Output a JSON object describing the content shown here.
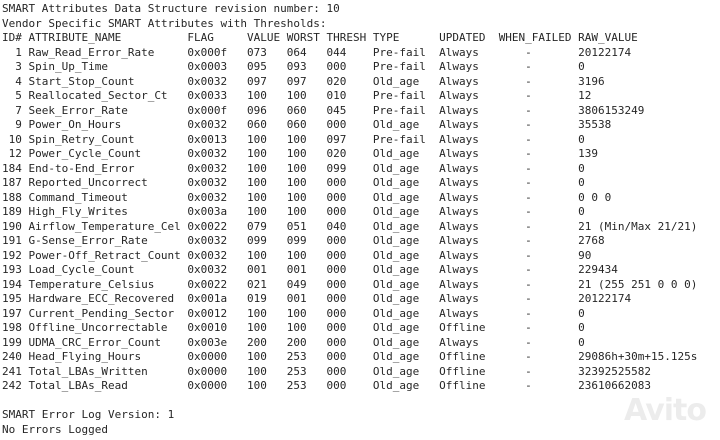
{
  "intro": [
    "SMART Attributes Data Structure revision number: 10",
    "Vendor Specific SMART Attributes with Thresholds:"
  ],
  "columns": {
    "id": "ID#",
    "name": "ATTRIBUTE_NAME",
    "flag": "FLAG",
    "value": "VALUE",
    "worst": "WORST",
    "thresh": "THRESH",
    "type": "TYPE",
    "updated": "UPDATED",
    "when_failed": "WHEN_FAILED",
    "raw": "RAW_VALUE"
  },
  "rows": [
    {
      "id": "1",
      "name": "Raw_Read_Error_Rate",
      "flag": "0x000f",
      "value": "073",
      "worst": "064",
      "thresh": "044",
      "type": "Pre-fail",
      "updated": "Always",
      "when_failed": "-",
      "raw": "20122174"
    },
    {
      "id": "3",
      "name": "Spin_Up_Time",
      "flag": "0x0003",
      "value": "095",
      "worst": "093",
      "thresh": "000",
      "type": "Pre-fail",
      "updated": "Always",
      "when_failed": "-",
      "raw": "0"
    },
    {
      "id": "4",
      "name": "Start_Stop_Count",
      "flag": "0x0032",
      "value": "097",
      "worst": "097",
      "thresh": "020",
      "type": "Old_age",
      "updated": "Always",
      "when_failed": "-",
      "raw": "3196"
    },
    {
      "id": "5",
      "name": "Reallocated_Sector_Ct",
      "flag": "0x0033",
      "value": "100",
      "worst": "100",
      "thresh": "010",
      "type": "Pre-fail",
      "updated": "Always",
      "when_failed": "-",
      "raw": "12"
    },
    {
      "id": "7",
      "name": "Seek_Error_Rate",
      "flag": "0x000f",
      "value": "096",
      "worst": "060",
      "thresh": "045",
      "type": "Pre-fail",
      "updated": "Always",
      "when_failed": "-",
      "raw": "3806153249"
    },
    {
      "id": "9",
      "name": "Power_On_Hours",
      "flag": "0x0032",
      "value": "060",
      "worst": "060",
      "thresh": "000",
      "type": "Old_age",
      "updated": "Always",
      "when_failed": "-",
      "raw": "35538"
    },
    {
      "id": "10",
      "name": "Spin_Retry_Count",
      "flag": "0x0013",
      "value": "100",
      "worst": "100",
      "thresh": "097",
      "type": "Pre-fail",
      "updated": "Always",
      "when_failed": "-",
      "raw": "0"
    },
    {
      "id": "12",
      "name": "Power_Cycle_Count",
      "flag": "0x0032",
      "value": "100",
      "worst": "100",
      "thresh": "020",
      "type": "Old_age",
      "updated": "Always",
      "when_failed": "-",
      "raw": "139"
    },
    {
      "id": "184",
      "name": "End-to-End_Error",
      "flag": "0x0032",
      "value": "100",
      "worst": "100",
      "thresh": "099",
      "type": "Old_age",
      "updated": "Always",
      "when_failed": "-",
      "raw": "0"
    },
    {
      "id": "187",
      "name": "Reported_Uncorrect",
      "flag": "0x0032",
      "value": "100",
      "worst": "100",
      "thresh": "000",
      "type": "Old_age",
      "updated": "Always",
      "when_failed": "-",
      "raw": "0"
    },
    {
      "id": "188",
      "name": "Command_Timeout",
      "flag": "0x0032",
      "value": "100",
      "worst": "100",
      "thresh": "000",
      "type": "Old_age",
      "updated": "Always",
      "when_failed": "-",
      "raw": "0 0 0"
    },
    {
      "id": "189",
      "name": "High_Fly_Writes",
      "flag": "0x003a",
      "value": "100",
      "worst": "100",
      "thresh": "000",
      "type": "Old_age",
      "updated": "Always",
      "when_failed": "-",
      "raw": "0"
    },
    {
      "id": "190",
      "name": "Airflow_Temperature_Cel",
      "flag": "0x0022",
      "value": "079",
      "worst": "051",
      "thresh": "040",
      "type": "Old_age",
      "updated": "Always",
      "when_failed": "-",
      "raw": "21 (Min/Max 21/21)"
    },
    {
      "id": "191",
      "name": "G-Sense_Error_Rate",
      "flag": "0x0032",
      "value": "099",
      "worst": "099",
      "thresh": "000",
      "type": "Old_age",
      "updated": "Always",
      "when_failed": "-",
      "raw": "2768"
    },
    {
      "id": "192",
      "name": "Power-Off_Retract_Count",
      "flag": "0x0032",
      "value": "100",
      "worst": "100",
      "thresh": "000",
      "type": "Old_age",
      "updated": "Always",
      "when_failed": "-",
      "raw": "90"
    },
    {
      "id": "193",
      "name": "Load_Cycle_Count",
      "flag": "0x0032",
      "value": "001",
      "worst": "001",
      "thresh": "000",
      "type": "Old_age",
      "updated": "Always",
      "when_failed": "-",
      "raw": "229434"
    },
    {
      "id": "194",
      "name": "Temperature_Celsius",
      "flag": "0x0022",
      "value": "021",
      "worst": "049",
      "thresh": "000",
      "type": "Old_age",
      "updated": "Always",
      "when_failed": "-",
      "raw": "21 (255 251 0 0 0)"
    },
    {
      "id": "195",
      "name": "Hardware_ECC_Recovered",
      "flag": "0x001a",
      "value": "019",
      "worst": "001",
      "thresh": "000",
      "type": "Old_age",
      "updated": "Always",
      "when_failed": "-",
      "raw": "20122174"
    },
    {
      "id": "197",
      "name": "Current_Pending_Sector",
      "flag": "0x0012",
      "value": "100",
      "worst": "100",
      "thresh": "000",
      "type": "Old_age",
      "updated": "Always",
      "when_failed": "-",
      "raw": "0"
    },
    {
      "id": "198",
      "name": "Offline_Uncorrectable",
      "flag": "0x0010",
      "value": "100",
      "worst": "100",
      "thresh": "000",
      "type": "Old_age",
      "updated": "Offline",
      "when_failed": "-",
      "raw": "0"
    },
    {
      "id": "199",
      "name": "UDMA_CRC_Error_Count",
      "flag": "0x003e",
      "value": "200",
      "worst": "200",
      "thresh": "000",
      "type": "Old_age",
      "updated": "Always",
      "when_failed": "-",
      "raw": "0"
    },
    {
      "id": "240",
      "name": "Head_Flying_Hours",
      "flag": "0x0000",
      "value": "100",
      "worst": "253",
      "thresh": "000",
      "type": "Old_age",
      "updated": "Offline",
      "when_failed": "-",
      "raw": "29086h+30m+15.125s"
    },
    {
      "id": "241",
      "name": "Total_LBAs_Written",
      "flag": "0x0000",
      "value": "100",
      "worst": "253",
      "thresh": "000",
      "type": "Old_age",
      "updated": "Offline",
      "when_failed": "-",
      "raw": "32392525582"
    },
    {
      "id": "242",
      "name": "Total_LBAs_Read",
      "flag": "0x0000",
      "value": "100",
      "worst": "253",
      "thresh": "000",
      "type": "Old_age",
      "updated": "Offline",
      "when_failed": "-",
      "raw": "23610662083"
    }
  ],
  "footer": [
    "SMART Error Log Version: 1",
    "No Errors Logged"
  ],
  "watermark": "Avito"
}
